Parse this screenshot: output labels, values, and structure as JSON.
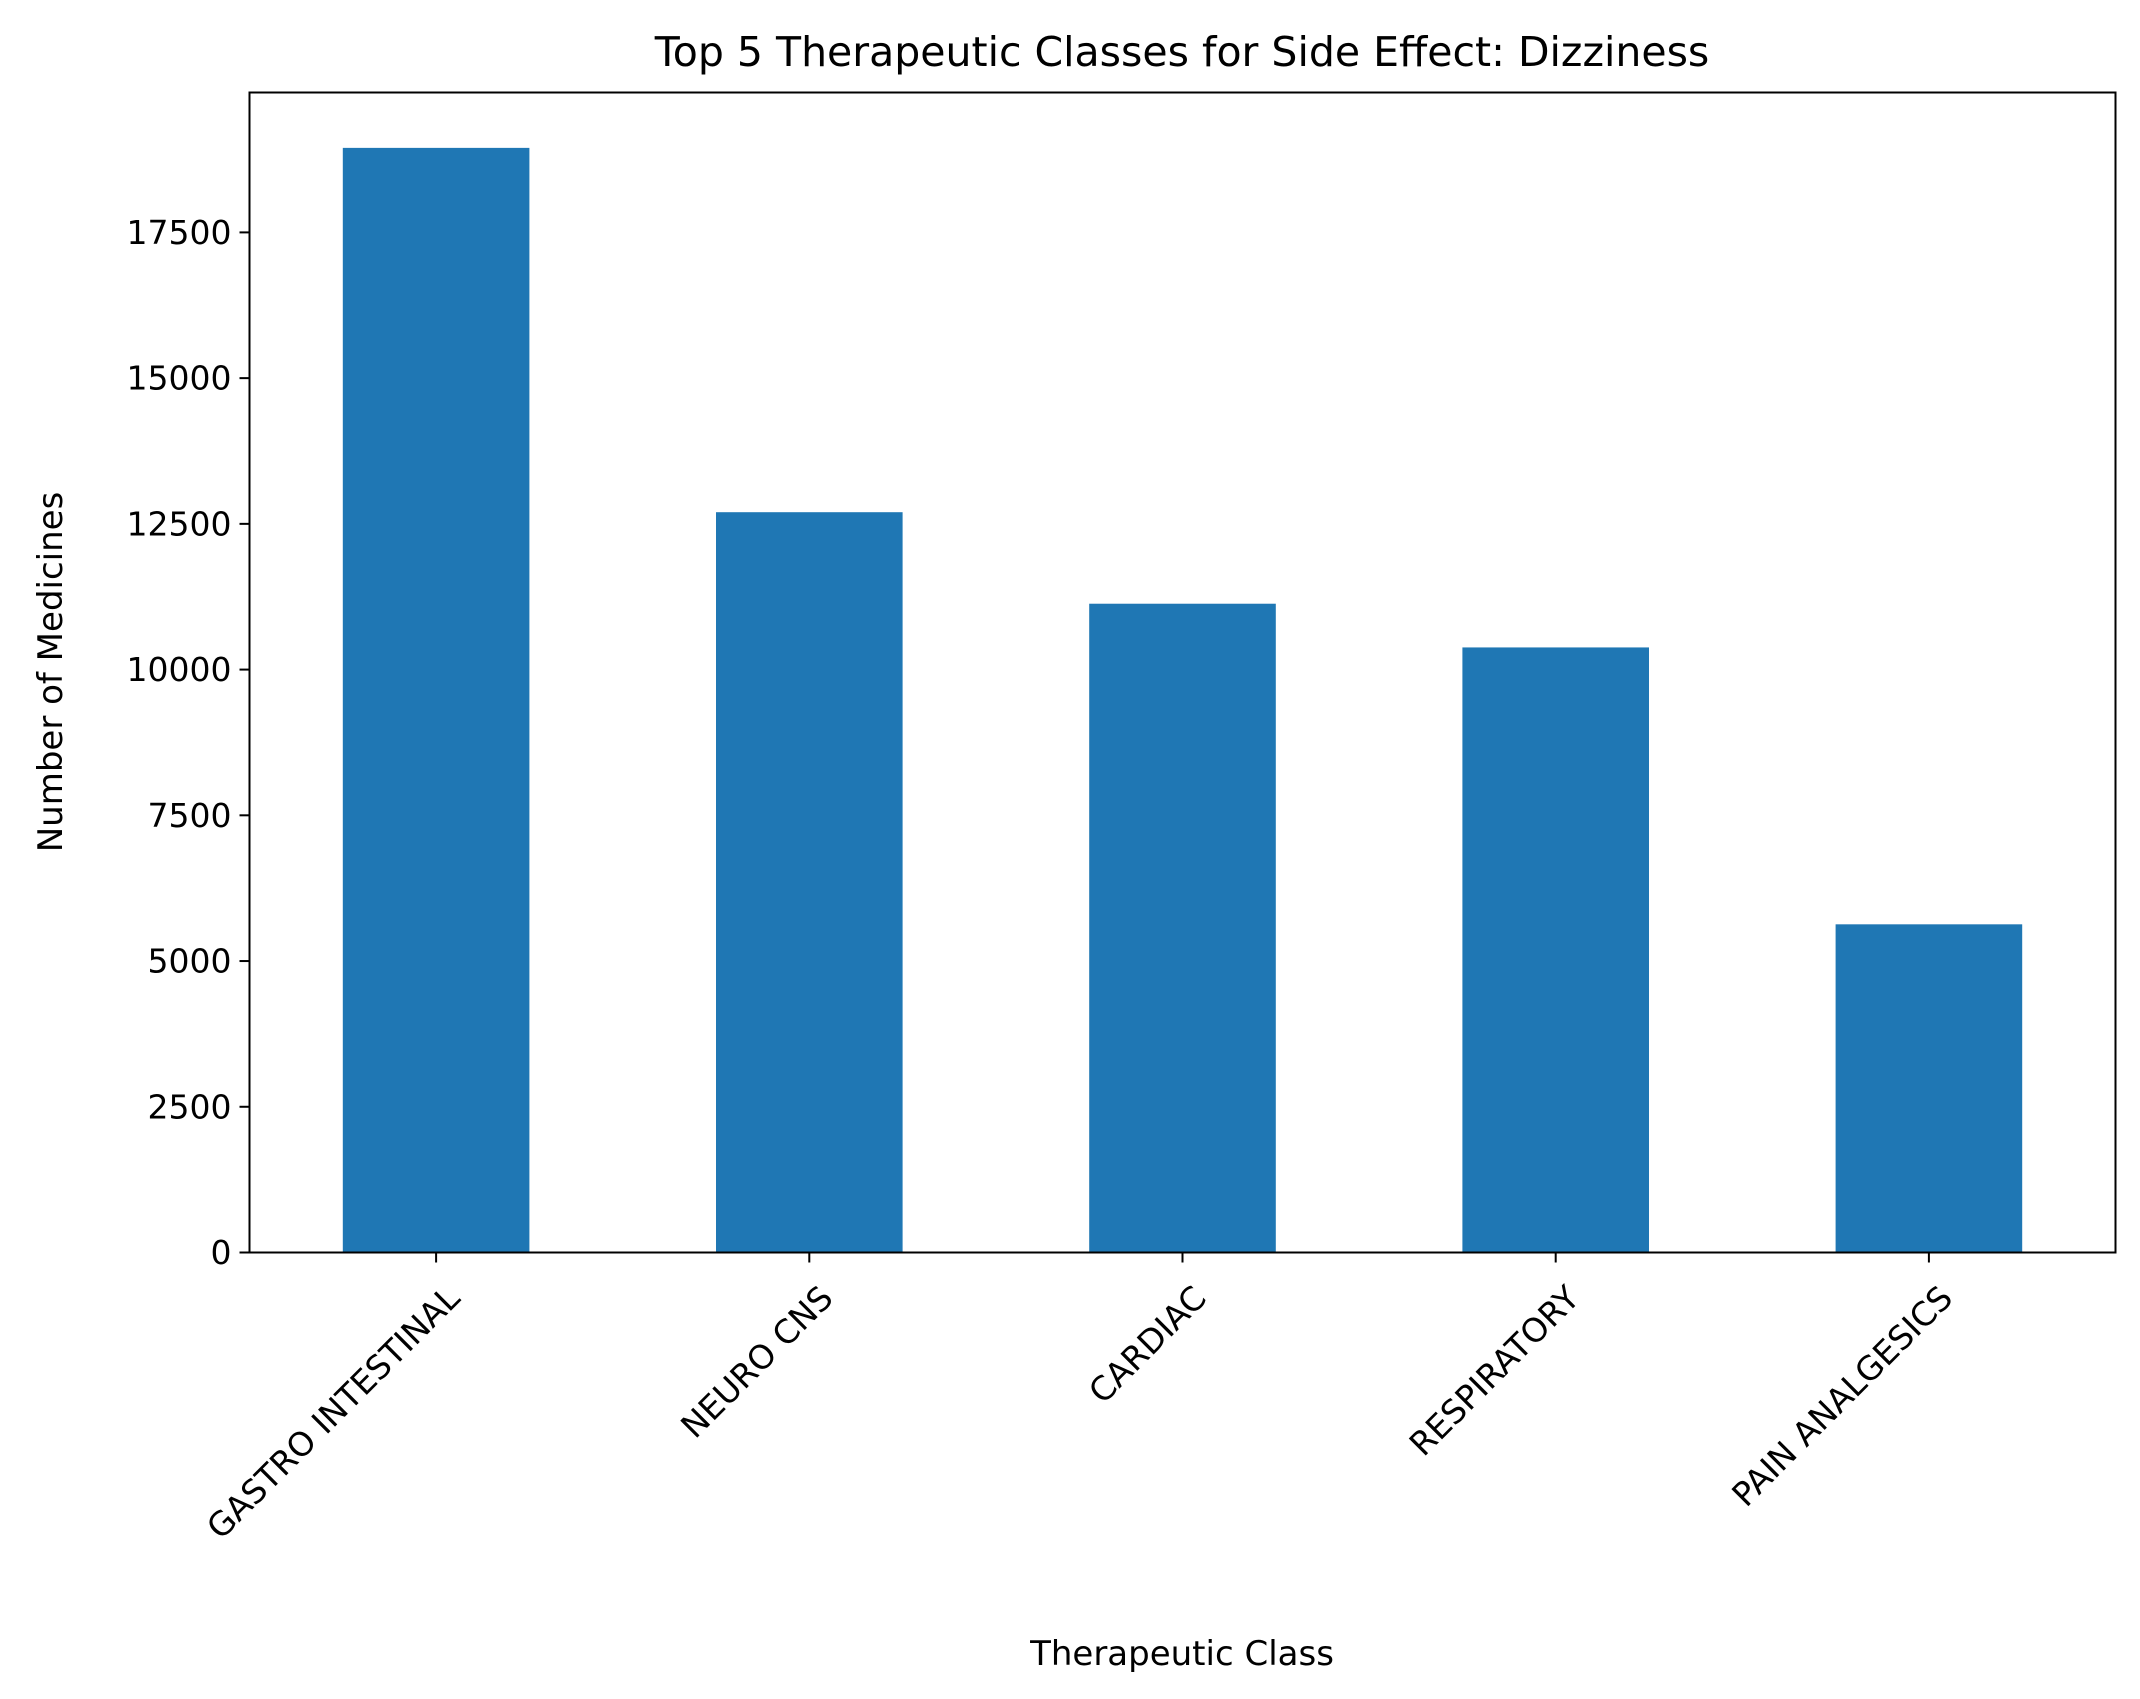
{
  "chart_data": {
    "type": "bar",
    "title": "Top 5 Therapeutic Classes for Side Effect: Dizziness",
    "xlabel": "Therapeutic Class",
    "ylabel": "Number of Medicines",
    "categories": [
      "GASTRO INTESTINAL",
      "NEURO CNS",
      "CARDIAC",
      "RESPIRATORY",
      "PAIN ANALGESICS"
    ],
    "values": [
      18950,
      12700,
      11130,
      10380,
      5630
    ],
    "ylim": [
      0,
      19900
    ],
    "yticks": [
      0,
      2500,
      5000,
      7500,
      10000,
      12500,
      15000,
      17500
    ],
    "ytick_labels": [
      "0",
      "2500",
      "5000",
      "7500",
      "10000",
      "12500",
      "15000",
      "17500"
    ],
    "bar_color": "#1f77b4",
    "grid": false,
    "legend": "none",
    "xtick_rotation_deg": 45
  }
}
